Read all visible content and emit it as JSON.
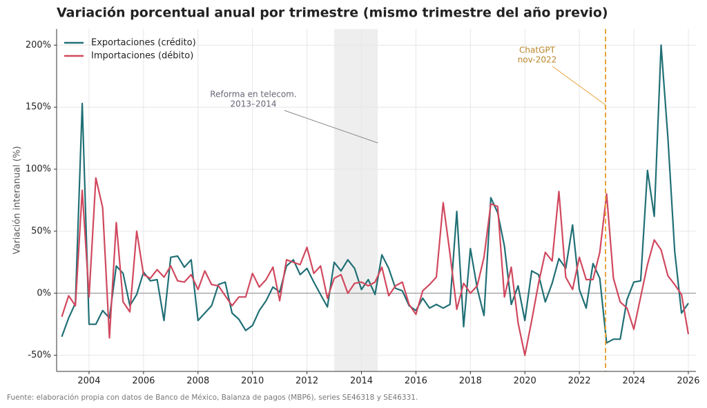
{
  "chart_data": {
    "type": "line",
    "title": "Variación porcentual anual por trimestre (mismo trimestre del año previo)",
    "ylabel": "Variación interanual (%)",
    "source": "Fuente: elaboración propia con datos de Banco de México, Balanza de pagos (MBP6), series SE46318 y SE46331.",
    "x": [
      2003,
      2003.25,
      2003.5,
      2003.75,
      2004,
      2004.25,
      2004.5,
      2004.75,
      2005,
      2005.25,
      2005.5,
      2005.75,
      2006,
      2006.25,
      2006.5,
      2006.75,
      2007,
      2007.25,
      2007.5,
      2007.75,
      2008,
      2008.25,
      2008.5,
      2008.75,
      2009,
      2009.25,
      2009.5,
      2009.75,
      2010,
      2010.25,
      2010.5,
      2010.75,
      2011,
      2011.25,
      2011.5,
      2011.75,
      2012,
      2012.25,
      2012.5,
      2012.75,
      2013,
      2013.25,
      2013.5,
      2013.75,
      2014,
      2014.25,
      2014.5,
      2014.75,
      2015,
      2015.25,
      2015.5,
      2015.75,
      2016,
      2016.25,
      2016.5,
      2016.75,
      2017,
      2017.25,
      2017.5,
      2017.75,
      2018,
      2018.25,
      2018.5,
      2018.75,
      2019,
      2019.25,
      2019.5,
      2019.75,
      2020,
      2020.25,
      2020.5,
      2020.75,
      2021,
      2021.25,
      2021.5,
      2021.75,
      2022,
      2022.25,
      2022.5,
      2022.75,
      2023,
      2023.25,
      2023.5,
      2023.75,
      2024,
      2024.25,
      2024.5,
      2024.75,
      2025,
      2025.25,
      2025.5,
      2025.75,
      2026
    ],
    "series": [
      {
        "name": "Exportaciones (crédito)",
        "color": "#1f6f75",
        "values": [
          -35,
          -20,
          -8,
          153,
          -25,
          -25,
          -14,
          -20,
          22,
          16,
          -10,
          -1,
          17,
          10,
          11,
          -22,
          29,
          30,
          21,
          27,
          -22,
          -16,
          -10,
          7,
          9,
          -16,
          -21,
          -30,
          -26,
          -14,
          -6,
          5,
          1,
          22,
          27,
          15,
          20,
          9,
          -1,
          -11,
          25,
          18,
          27,
          20,
          3,
          11,
          -1,
          31,
          20,
          4,
          2,
          -10,
          -14,
          -4,
          -12,
          -9,
          -12,
          -9,
          66,
          -27,
          36,
          4,
          -18,
          77,
          65,
          38,
          -9,
          6,
          -22,
          18,
          15,
          -7,
          8,
          28,
          20,
          55,
          3,
          -12,
          24,
          12,
          -40,
          -37,
          -37,
          -5,
          9,
          10,
          99,
          62,
          200,
          125,
          34,
          -16,
          -8
        ]
      },
      {
        "name": "Importaciones (débito)",
        "color": "#d0485e",
        "values": [
          -19,
          -2,
          -10,
          83,
          -3,
          93,
          69,
          -36,
          57,
          -7,
          -15,
          50,
          15,
          12,
          19,
          13,
          22,
          10,
          9,
          15,
          3,
          18,
          7,
          6,
          -2,
          -10,
          -3,
          -3,
          16,
          5,
          11,
          21,
          -6,
          27,
          25,
          23,
          37,
          16,
          22,
          -4,
          12,
          15,
          0,
          8,
          9,
          6,
          9,
          21,
          -2,
          6,
          9,
          -9,
          -17,
          2,
          7,
          13,
          73,
          32,
          -13,
          8,
          0,
          6,
          29,
          72,
          70,
          -3,
          21,
          -24,
          -50,
          -22,
          8,
          33,
          26,
          82,
          13,
          3,
          29,
          11,
          11,
          33,
          80,
          12,
          -7,
          -12,
          -29,
          -3,
          23,
          43,
          35,
          14,
          7,
          -1,
          -33
        ]
      }
    ],
    "xlim": [
      2002.81,
      2026.28
    ],
    "xticks": [
      2004,
      2006,
      2008,
      2010,
      2012,
      2014,
      2016,
      2018,
      2020,
      2022,
      2024,
      2026
    ],
    "ylim": [
      -63,
      213
    ],
    "yticks": [
      {
        "value": -50,
        "label": "-50%"
      },
      {
        "value": 0,
        "label": "0%"
      },
      {
        "value": 50,
        "label": "50%"
      },
      {
        "value": 100,
        "label": "100%"
      },
      {
        "value": 150,
        "label": "150%"
      },
      {
        "value": 200,
        "label": "200%"
      }
    ],
    "grid": true,
    "legend": "upper left",
    "span": {
      "start": 2013,
      "end": 2014.6,
      "label": [
        "Reforma en telecom.",
        "2013–2014"
      ]
    },
    "vline": {
      "x": 2022.96,
      "color": "#e8a33c",
      "label": [
        "ChatGPT",
        "nov-2022"
      ]
    }
  }
}
